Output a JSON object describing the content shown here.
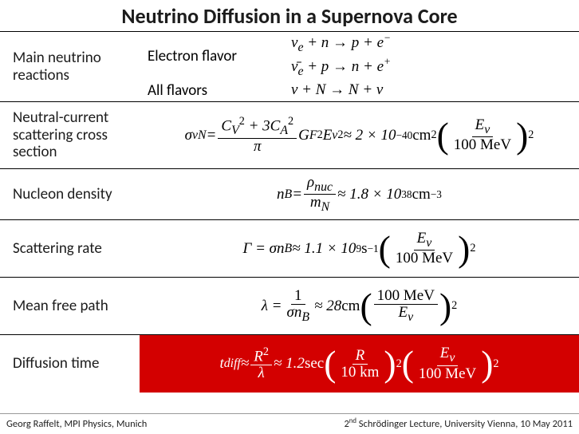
{
  "title": "Neutrino Diffusion in a Supernova Core",
  "rows": {
    "reactions": {
      "label": "Main neutrino reactions",
      "electron_label": "Electron flavor",
      "electron_eq1": "ν_e + n → p + e⁻",
      "electron_eq2": "ν̄_e + p → n + e⁺",
      "all_label": "All flavors",
      "all_eq": "ν + N → N + ν"
    },
    "sigma": {
      "label": "Neutral-current scattering cross section"
    },
    "nb": {
      "label": "Nucleon density"
    },
    "gamma": {
      "label": "Scattering rate"
    },
    "lambda": {
      "label": "Mean free path"
    },
    "tdiff": {
      "label": "Diffusion time"
    }
  },
  "formulas": {
    "sigma_prefix": "σ_{νN} =",
    "sigma_num": "C_V² + 3C_A²",
    "sigma_den": "π",
    "sigma_mid": " G_F² E_ν² ≈ 2 × 10⁻⁴⁰ cm²",
    "sigma_par_num": "E_ν",
    "sigma_par_den": "100 MeV",
    "nb_prefix": "n_B =",
    "nb_num": "ρ_nuc",
    "nb_den": "m_N",
    "nb_suffix": " ≈ 1.8 × 10³⁸ cm⁻³",
    "gamma_prefix": "Γ = σ n_B ≈ 1.1 × 10⁹ s⁻¹",
    "gamma_par_num": "E_ν",
    "gamma_par_den": "100 MeV",
    "lambda_prefix": "λ =",
    "lambda_num": "1",
    "lambda_den": "σ n_B",
    "lambda_mid": " ≈ 28 cm",
    "lambda_par_num": "100 MeV",
    "lambda_par_den": "E_ν",
    "tdiff_prefix": "t_diff ≈",
    "tdiff_num": "R²",
    "tdiff_den": "λ",
    "tdiff_mid": " ≈ 1.2 sec",
    "tdiff_p1_num": "R",
    "tdiff_p1_den": "10 km",
    "tdiff_p2_num": "E_ν",
    "tdiff_p2_den": "100 MeV"
  },
  "footer": {
    "left": "Georg Raffelt, MPI Physics, Munich",
    "right": "2ⁿᵈ Schrödinger Lecture, University Vienna, 10 May 2011"
  },
  "colors": {
    "highlight_bg": "#d30000",
    "highlight_fg": "#ffffff"
  }
}
